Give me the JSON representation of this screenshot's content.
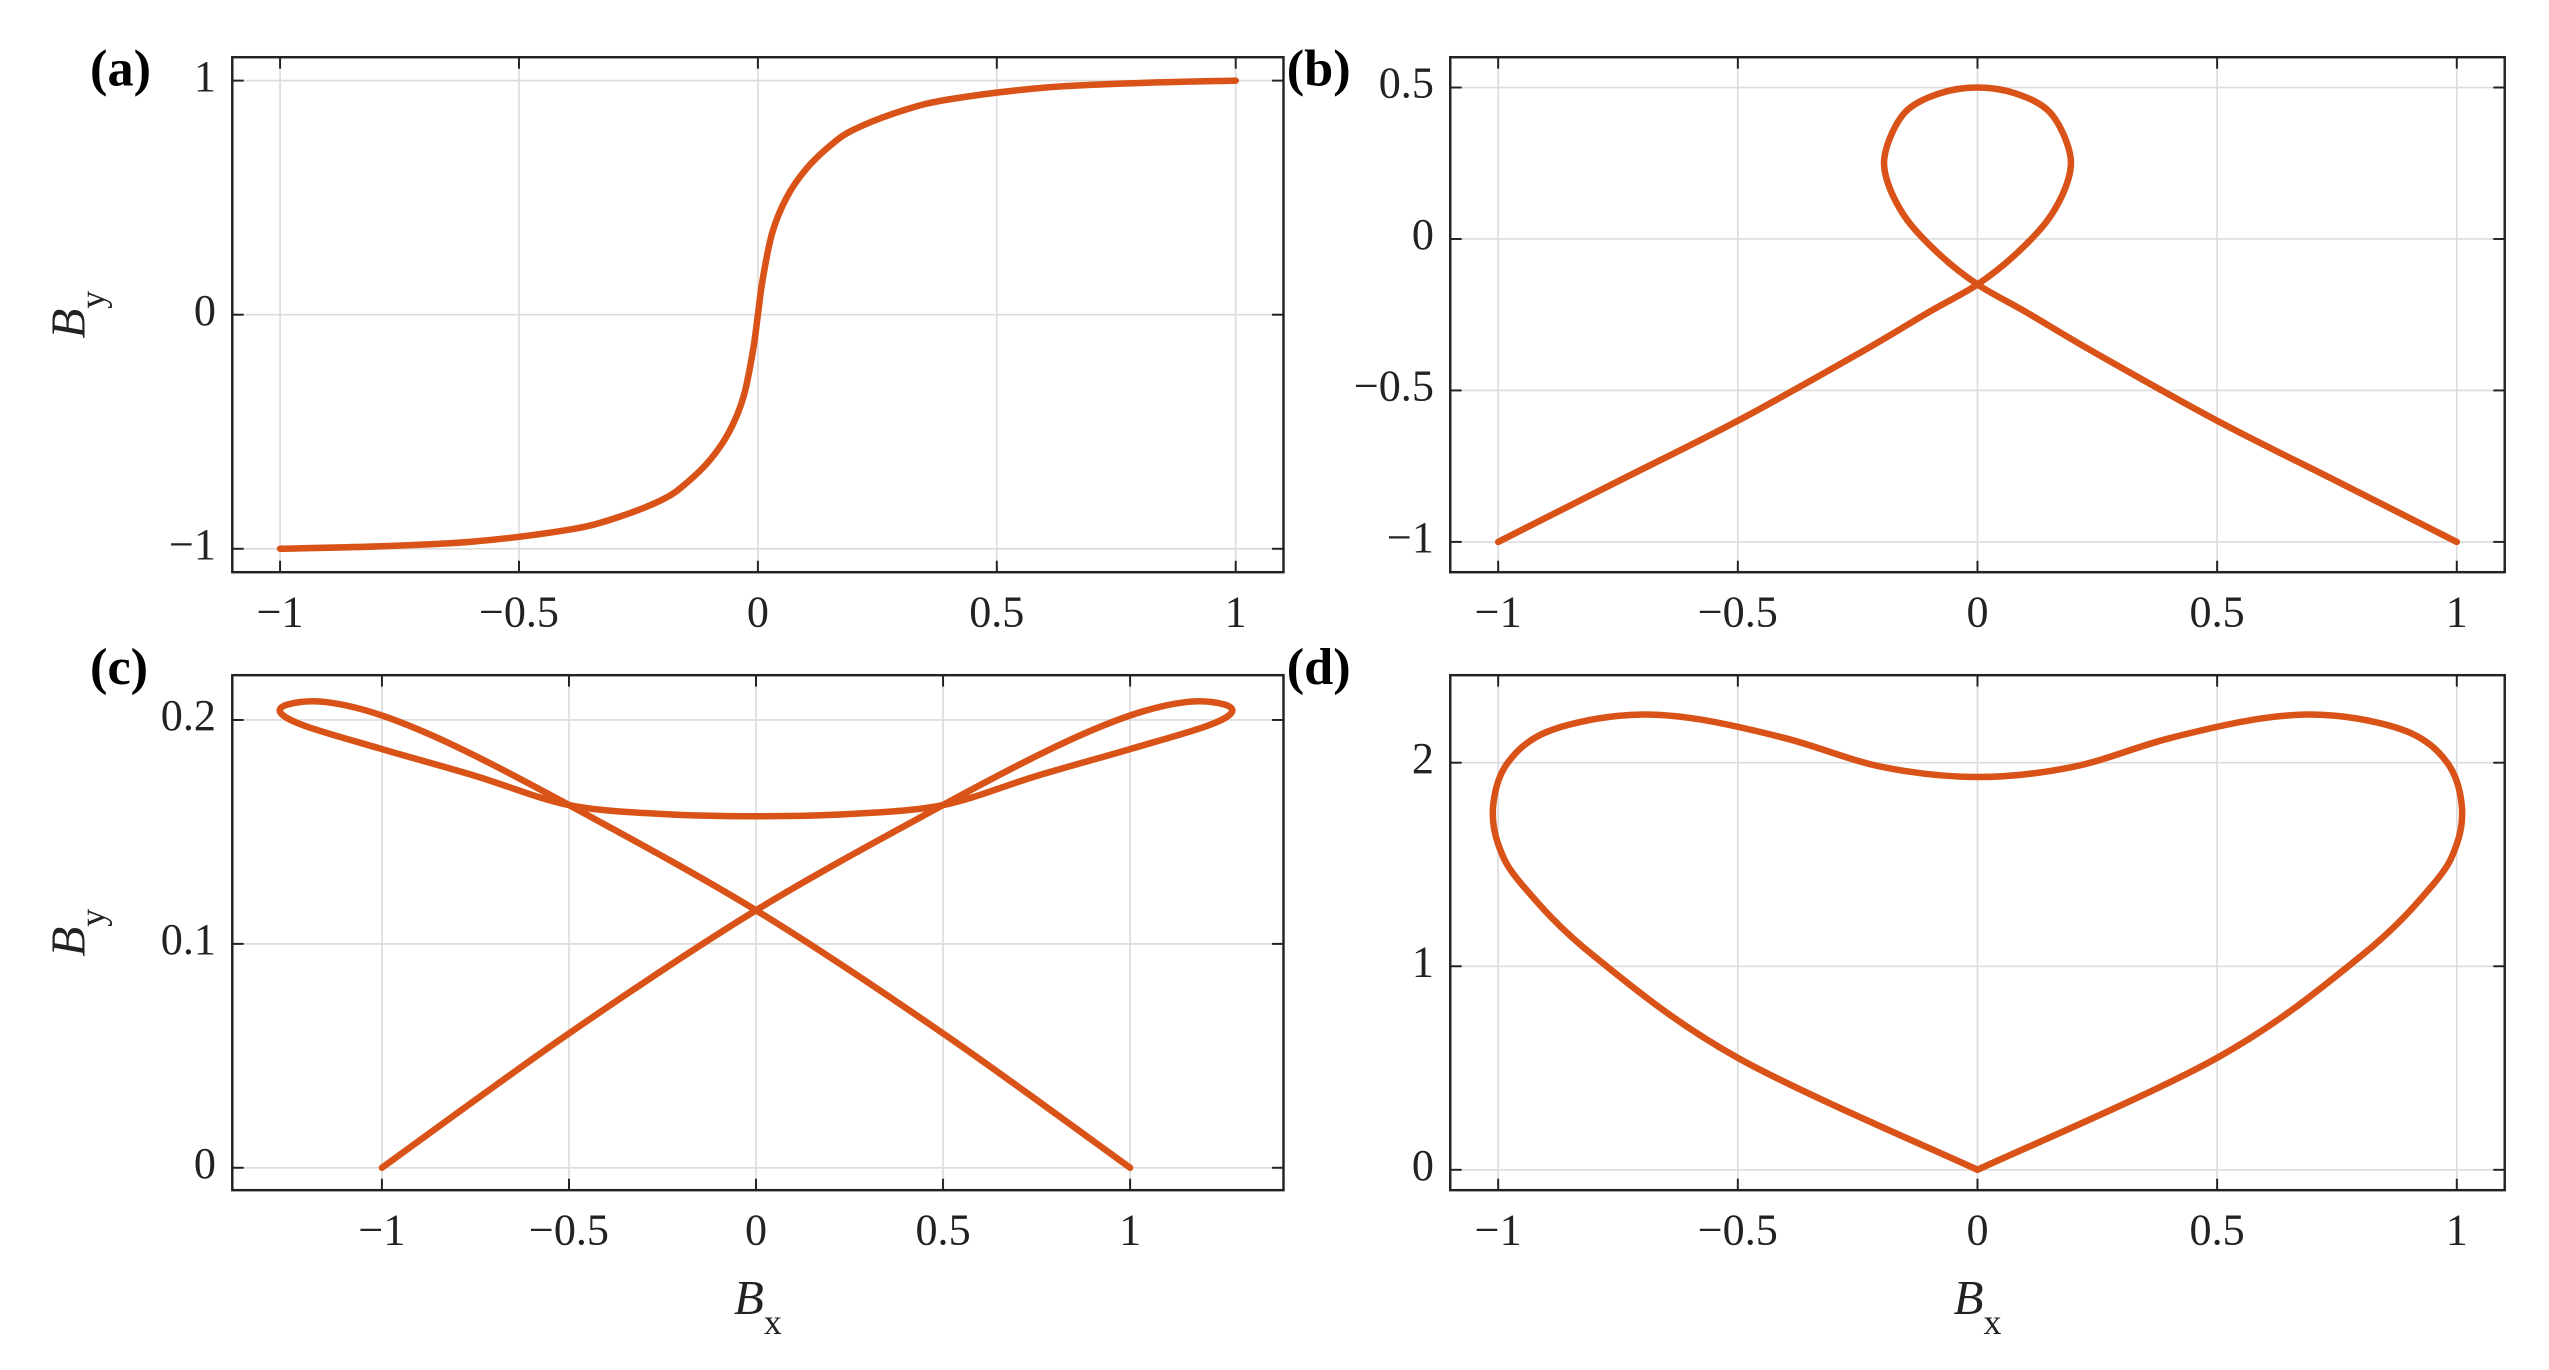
{
  "chart_data": [
    {
      "type": "line",
      "label": "(a)",
      "y_label": "B",
      "y_label_sub": "y",
      "color": "#d95319",
      "grid": true,
      "x": [
        -1,
        -0.8,
        -0.6,
        -0.4,
        -0.3,
        -0.2,
        -0.15,
        -0.1,
        -0.06,
        -0.03,
        -0.01,
        0,
        0.01,
        0.03,
        0.06,
        0.1,
        0.15,
        0.2,
        0.3,
        0.4,
        0.6,
        0.8,
        1
      ],
      "values": [
        -1,
        -0.99,
        -0.97,
        -0.92,
        -0.87,
        -0.79,
        -0.72,
        -0.62,
        -0.5,
        -0.35,
        -0.15,
        0,
        0.15,
        0.35,
        0.5,
        0.62,
        0.72,
        0.79,
        0.87,
        0.92,
        0.97,
        0.99,
        1
      ],
      "xlim": [
        -1.1,
        1.1
      ],
      "ylim": [
        -1.1,
        1.1
      ],
      "xticks": [
        {
          "value": -1,
          "label": "−1"
        },
        {
          "value": -0.5,
          "label": "−0.5"
        },
        0,
        0.5,
        1
      ],
      "yticks": [
        {
          "value": -1,
          "label": "−1"
        },
        0,
        1
      ]
    },
    {
      "type": "line",
      "label": "(b)",
      "color": "#d95319",
      "grid": true,
      "x": [
        -1,
        -0.75,
        -0.5,
        -0.25,
        -0.1,
        0,
        0.08,
        0.15,
        0.19,
        0.19,
        0.15,
        0.08,
        0,
        -0.08,
        -0.15,
        -0.19,
        -0.19,
        -0.15,
        -0.08,
        0,
        0.1,
        0.25,
        0.5,
        0.75,
        1
      ],
      "values": [
        -1,
        -0.8,
        -0.6,
        -0.38,
        -0.24,
        -0.15,
        -0.05,
        0.07,
        0.2,
        0.3,
        0.42,
        0.48,
        0.5,
        0.48,
        0.42,
        0.3,
        0.2,
        0.07,
        -0.05,
        -0.15,
        -0.24,
        -0.38,
        -0.6,
        -0.8,
        -1
      ],
      "xlim": [
        -1.1,
        1.1
      ],
      "ylim": [
        -1.1,
        0.6
      ],
      "xticks": [
        {
          "value": -1,
          "label": "−1"
        },
        {
          "value": -0.5,
          "label": "−0.5"
        },
        0,
        0.5,
        1
      ],
      "yticks": [
        {
          "value": -1,
          "label": "−1"
        },
        {
          "value": -0.5,
          "label": "−0.5"
        },
        0,
        0.5
      ]
    },
    {
      "type": "line",
      "label": "(c)",
      "x_label": "B",
      "x_label_sub": "x",
      "y_label": "B",
      "y_label_sub": "y",
      "color": "#d95319",
      "grid": true,
      "x": [
        -1,
        -0.5,
        0,
        0.5,
        0.8,
        1,
        1.15,
        1.25,
        1.27,
        1.2,
        1,
        0.75,
        0.5,
        0.25,
        0,
        -0.25,
        -0.5,
        -0.75,
        -1,
        -1.2,
        -1.27,
        -1.25,
        -1.15,
        -1,
        -0.8,
        -0.5,
        0,
        0.5,
        1
      ],
      "values": [
        0,
        0.06,
        0.115,
        0.162,
        0.188,
        0.202,
        0.208,
        0.207,
        0.203,
        0.197,
        0.187,
        0.175,
        0.162,
        0.158,
        0.157,
        0.158,
        0.162,
        0.175,
        0.187,
        0.197,
        0.203,
        0.207,
        0.208,
        0.202,
        0.188,
        0.162,
        0.115,
        0.06,
        0
      ],
      "xlim": [
        -1.4,
        1.41
      ],
      "ylim": [
        -0.01,
        0.22
      ],
      "xticks": [
        {
          "value": -1,
          "label": "−1"
        },
        {
          "value": -0.5,
          "label": "−0.5"
        },
        0,
        0.5,
        1
      ],
      "yticks": [
        0,
        0.1,
        0.2
      ]
    },
    {
      "type": "line",
      "label": "(d)",
      "x_label": "B",
      "x_label_sub": "x",
      "color": "#d95319",
      "grid": true,
      "x": [
        0,
        -0.5,
        -0.8,
        -0.95,
        -1,
        -1.01,
        -0.98,
        -0.9,
        -0.75,
        -0.6,
        -0.4,
        -0.2,
        0,
        0.2,
        0.4,
        0.6,
        0.75,
        0.9,
        0.98,
        1.01,
        1,
        0.95,
        0.8,
        0.5,
        0
      ],
      "values": [
        0,
        0.55,
        1.05,
        1.4,
        1.6,
        1.8,
        2.0,
        2.15,
        2.23,
        2.22,
        2.12,
        1.98,
        1.93,
        1.98,
        2.12,
        2.22,
        2.23,
        2.15,
        2.0,
        1.8,
        1.6,
        1.4,
        1.05,
        0.55,
        0
      ],
      "xlim": [
        -1.1,
        1.1
      ],
      "ylim": [
        -0.1,
        2.43
      ],
      "xticks": [
        {
          "value": -1,
          "label": "−1"
        },
        {
          "value": -0.5,
          "label": "−0.5"
        },
        0,
        0.5,
        1
      ],
      "yticks": [
        0,
        1,
        2
      ]
    }
  ]
}
